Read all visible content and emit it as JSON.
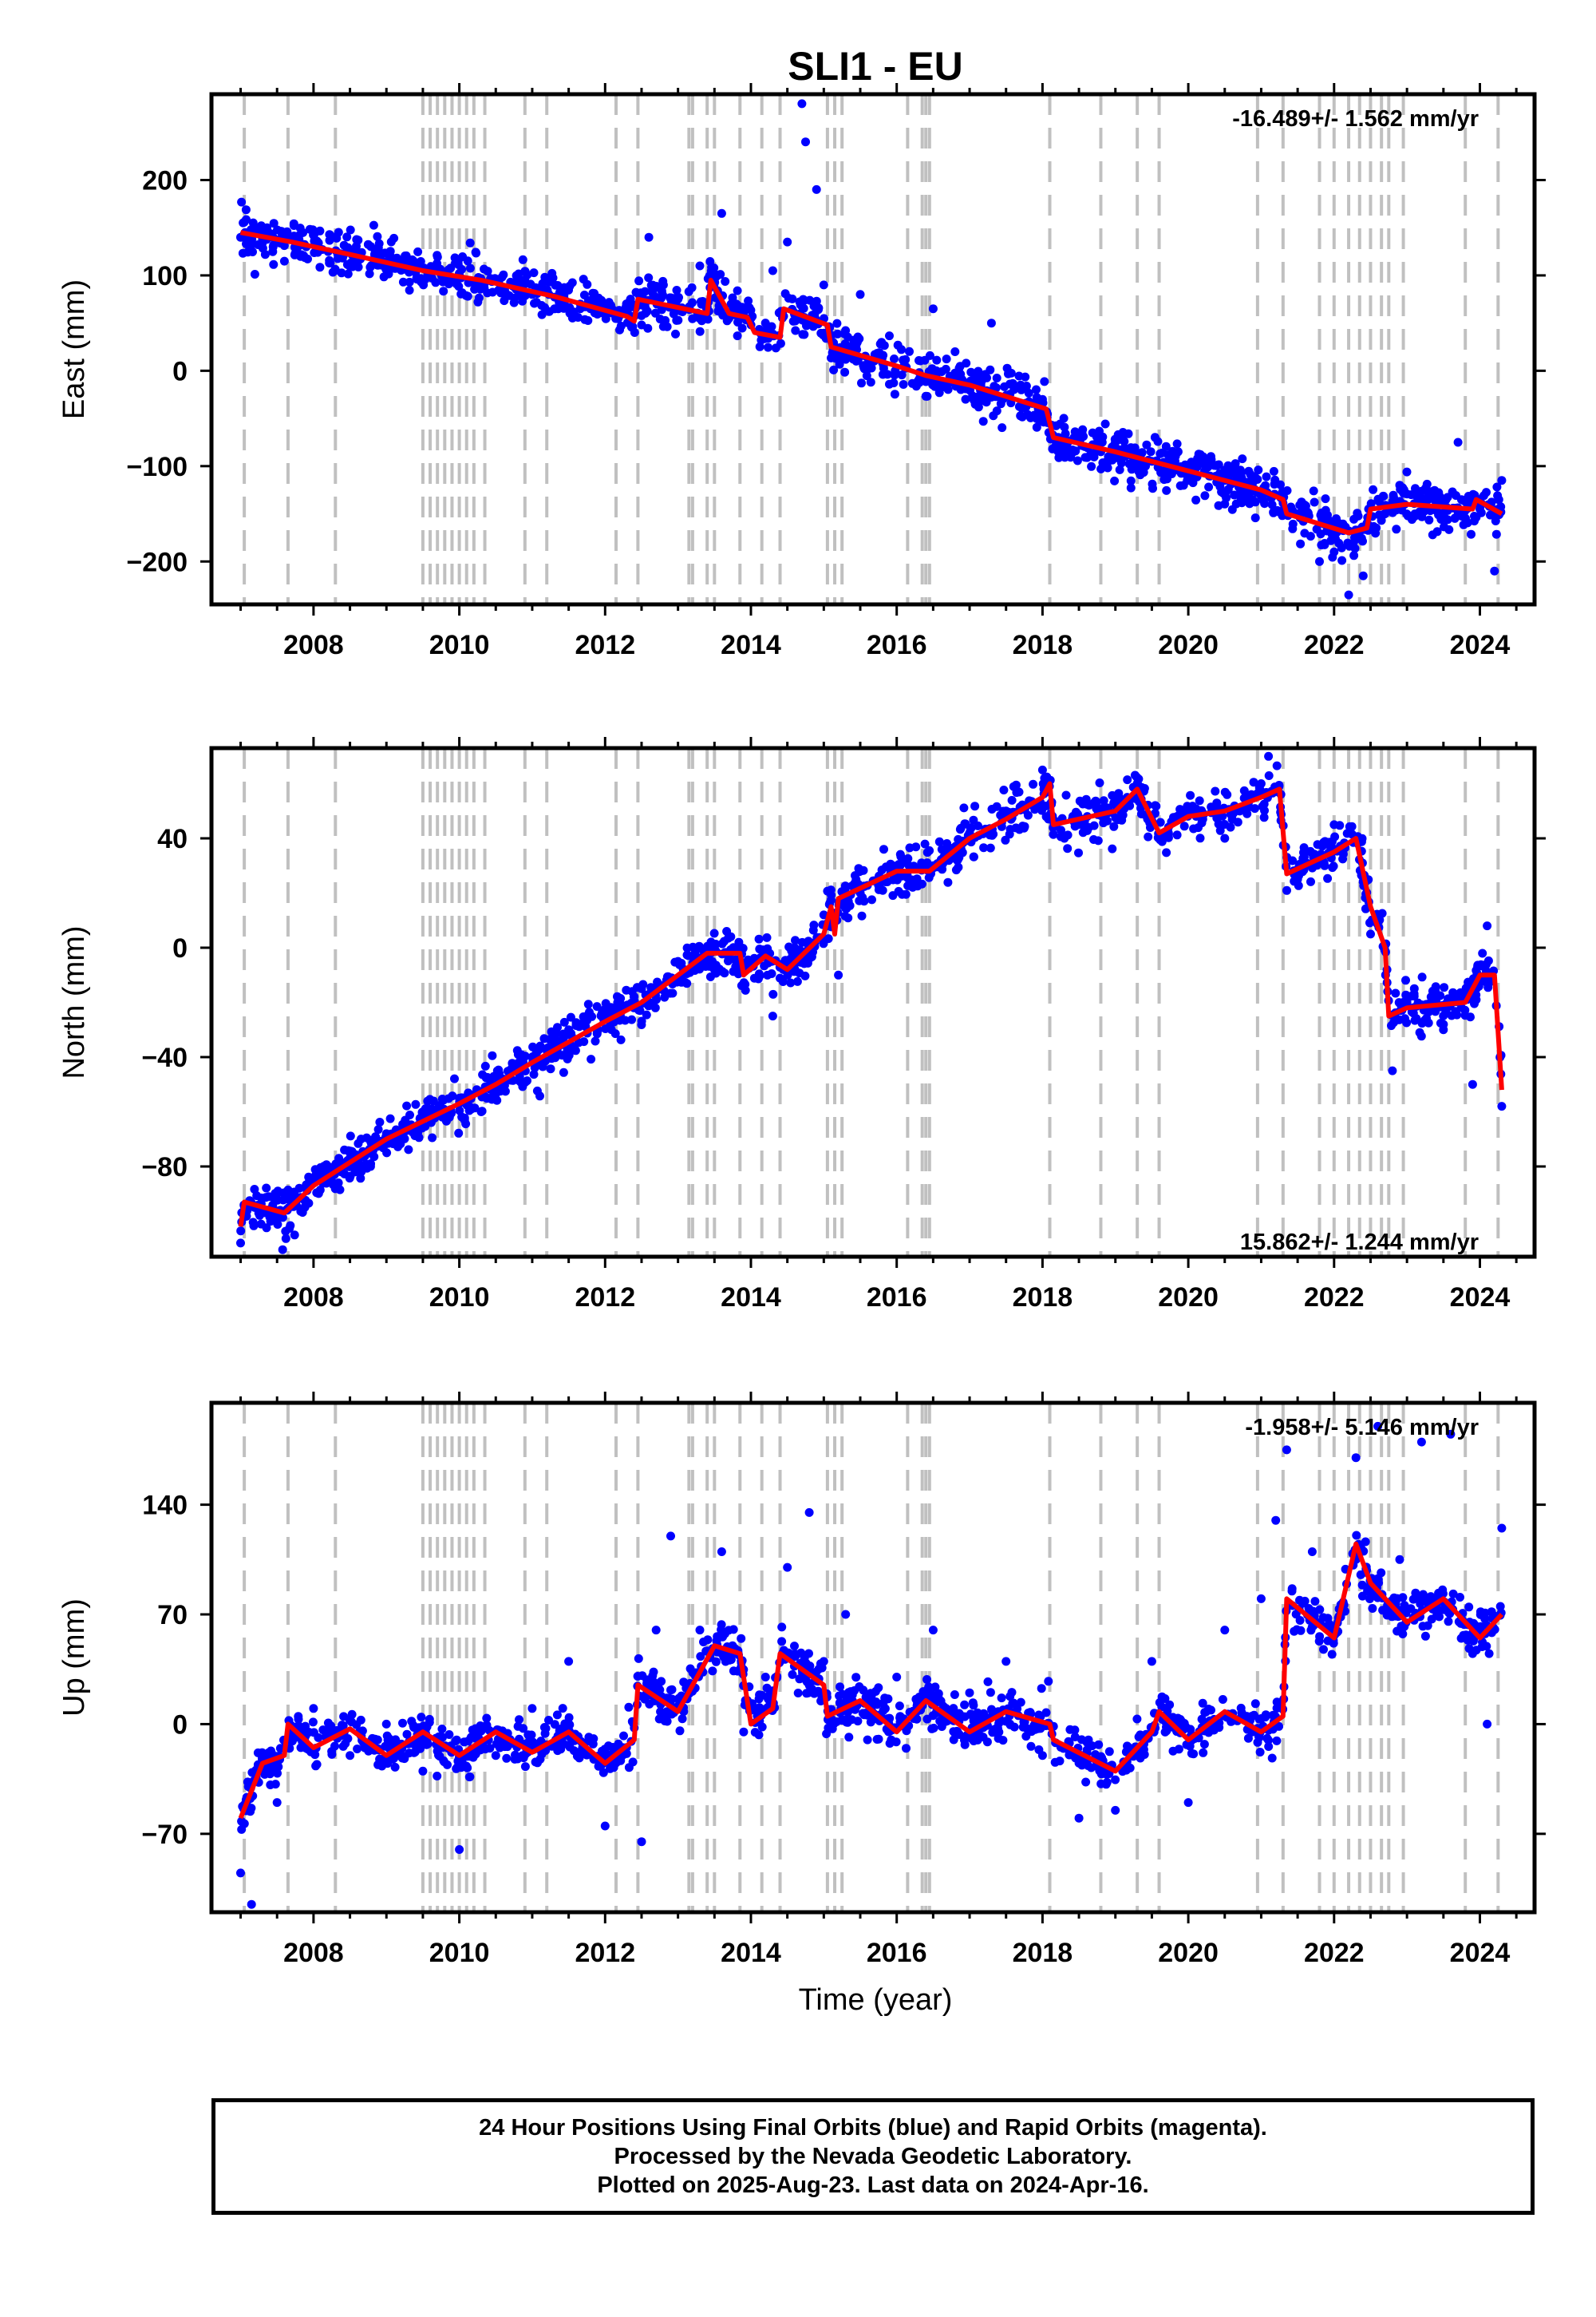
{
  "title": "SLI1 - EU",
  "x_axis_label": "Time (year)",
  "footer": {
    "line1": "24 Hour Positions Using Final Orbits (blue) and Rapid Orbits (magenta).",
    "line2": "Processed by the Nevada Geodetic Laboratory.",
    "line3": "Plotted on 2025-Aug-23. Last data on 2024-Apr-16."
  },
  "colors": {
    "data": "#0000ff",
    "model": "#ff0000",
    "event_lines": "#c0c0c0",
    "frame": "#000000"
  },
  "chart_data": [
    {
      "type": "scatter",
      "name": "East",
      "ylabel": "East (mm)",
      "rate_text": "-16.489+/- 1.562 mm/yr",
      "xlim": [
        2006.6,
        2024.75
      ],
      "ylim": [
        -245,
        290
      ],
      "xticks": [
        2008,
        2010,
        2012,
        2014,
        2016,
        2018,
        2020,
        2022,
        2024
      ],
      "yticks": [
        -200,
        -100,
        0,
        100,
        200
      ],
      "event_lines": [
        2007.05,
        2007.65,
        2008.3,
        2009.5,
        2009.6,
        2009.7,
        2009.8,
        2009.9,
        2010.0,
        2010.1,
        2010.2,
        2010.35,
        2010.9,
        2011.2,
        2012.15,
        2012.45,
        2013.15,
        2013.2,
        2013.4,
        2013.5,
        2013.85,
        2014.15,
        2014.4,
        2015.05,
        2015.15,
        2015.25,
        2016.15,
        2016.35,
        2016.4,
        2016.45,
        2018.1,
        2018.8,
        2019.3,
        2019.6,
        2020.95,
        2021.3,
        2021.8,
        2022.0,
        2022.2,
        2022.35,
        2022.5,
        2022.65,
        2022.75,
        2022.95,
        2023.8,
        2024.25
      ],
      "model_line": [
        [
          2007.0,
          145
        ],
        [
          2007.7,
          135
        ],
        [
          2008.5,
          122
        ],
        [
          2009.5,
          105
        ],
        [
          2010.3,
          95
        ],
        [
          2011.3,
          78
        ],
        [
          2012.3,
          57
        ],
        [
          2012.4,
          52
        ],
        [
          2012.45,
          75
        ],
        [
          2013.4,
          60
        ],
        [
          2013.45,
          95
        ],
        [
          2013.7,
          60
        ],
        [
          2013.95,
          56
        ],
        [
          2014.05,
          40
        ],
        [
          2014.4,
          35
        ],
        [
          2014.45,
          65
        ],
        [
          2015.05,
          48
        ],
        [
          2015.1,
          25
        ],
        [
          2016.0,
          5
        ],
        [
          2016.4,
          -5
        ],
        [
          2017.0,
          -15
        ],
        [
          2018.05,
          -40
        ],
        [
          2018.15,
          -70
        ],
        [
          2019.0,
          -85
        ],
        [
          2020.0,
          -105
        ],
        [
          2021.0,
          -125
        ],
        [
          2021.3,
          -135
        ],
        [
          2021.35,
          -150
        ],
        [
          2022.2,
          -170
        ],
        [
          2022.45,
          -165
        ],
        [
          2022.5,
          -145
        ],
        [
          2023.0,
          -140
        ],
        [
          2023.9,
          -145
        ],
        [
          2023.95,
          -135
        ],
        [
          2024.3,
          -150
        ]
      ],
      "points": [
        [
          2007.0,
          140
        ],
        [
          2007.3,
          138
        ],
        [
          2007.6,
          135
        ],
        [
          2007.9,
          130
        ],
        [
          2008.2,
          125
        ],
        [
          2008.6,
          118
        ],
        [
          2009.0,
          110
        ],
        [
          2009.4,
          103
        ],
        [
          2009.8,
          98
        ],
        [
          2010.2,
          92
        ],
        [
          2010.6,
          85
        ],
        [
          2011.0,
          80
        ],
        [
          2011.4,
          75
        ],
        [
          2011.8,
          65
        ],
        [
          2012.2,
          58
        ],
        [
          2012.5,
          48
        ],
        [
          2012.6,
          140
        ],
        [
          2012.8,
          90
        ],
        [
          2013.0,
          75
        ],
        [
          2013.3,
          110
        ],
        [
          2013.6,
          165
        ],
        [
          2013.8,
          70
        ],
        [
          2014.0,
          55
        ],
        [
          2014.3,
          105
        ],
        [
          2014.5,
          135
        ],
        [
          2014.7,
          280
        ],
        [
          2014.75,
          240
        ],
        [
          2014.9,
          190
        ],
        [
          2015.0,
          90
        ],
        [
          2015.3,
          25
        ],
        [
          2015.5,
          80
        ],
        [
          2015.7,
          15
        ],
        [
          2016.1,
          5
        ],
        [
          2016.5,
          65
        ],
        [
          2016.8,
          20
        ],
        [
          2017.3,
          50
        ],
        [
          2017.7,
          -15
        ],
        [
          2018.0,
          -30
        ],
        [
          2018.3,
          -75
        ],
        [
          2018.8,
          -85
        ],
        [
          2019.5,
          -95
        ],
        [
          2020.0,
          -100
        ],
        [
          2020.5,
          -115
        ],
        [
          2021.0,
          -130
        ],
        [
          2021.5,
          -150
        ],
        [
          2021.8,
          -200
        ],
        [
          2022.0,
          -190
        ],
        [
          2022.2,
          -235
        ],
        [
          2022.4,
          -215
        ],
        [
          2022.7,
          -150
        ],
        [
          2022.9,
          -120
        ],
        [
          2023.3,
          -130
        ],
        [
          2023.7,
          -75
        ],
        [
          2024.0,
          -145
        ],
        [
          2024.2,
          -210
        ],
        [
          2024.3,
          -115
        ]
      ]
    },
    {
      "type": "scatter",
      "name": "North",
      "ylabel": "North (mm)",
      "rate_text": "15.862+/- 1.244 mm/yr",
      "xlim": [
        2006.6,
        2024.75
      ],
      "ylim": [
        -113,
        73
      ],
      "xticks": [
        2008,
        2010,
        2012,
        2014,
        2016,
        2018,
        2020,
        2022,
        2024
      ],
      "yticks": [
        -80,
        -40,
        0,
        40
      ],
      "event_lines": [
        2007.05,
        2007.65,
        2008.3,
        2009.5,
        2009.6,
        2009.7,
        2009.8,
        2009.9,
        2010.0,
        2010.1,
        2010.2,
        2010.35,
        2010.9,
        2011.2,
        2012.15,
        2012.45,
        2013.15,
        2013.2,
        2013.4,
        2013.5,
        2013.85,
        2014.15,
        2014.4,
        2015.05,
        2015.15,
        2015.25,
        2016.15,
        2016.35,
        2016.4,
        2016.45,
        2018.1,
        2018.8,
        2019.3,
        2019.6,
        2020.95,
        2021.3,
        2021.8,
        2022.0,
        2022.2,
        2022.35,
        2022.5,
        2022.65,
        2022.75,
        2022.95,
        2023.8,
        2024.25
      ],
      "model_line": [
        [
          2007.0,
          -102
        ],
        [
          2007.05,
          -93
        ],
        [
          2007.6,
          -97
        ],
        [
          2008.0,
          -87
        ],
        [
          2009.0,
          -70
        ],
        [
          2010.0,
          -57
        ],
        [
          2010.5,
          -50
        ],
        [
          2011.0,
          -42
        ],
        [
          2012.0,
          -27
        ],
        [
          2012.5,
          -20
        ],
        [
          2013.0,
          -10
        ],
        [
          2013.4,
          -2
        ],
        [
          2013.85,
          -2
        ],
        [
          2013.9,
          -10
        ],
        [
          2014.2,
          -3
        ],
        [
          2014.5,
          -8
        ],
        [
          2015.0,
          5
        ],
        [
          2015.1,
          15
        ],
        [
          2015.15,
          5
        ],
        [
          2015.2,
          18
        ],
        [
          2016.0,
          28
        ],
        [
          2016.45,
          28
        ],
        [
          2017.0,
          40
        ],
        [
          2017.5,
          47
        ],
        [
          2018.0,
          55
        ],
        [
          2018.1,
          60
        ],
        [
          2018.15,
          45
        ],
        [
          2019.0,
          50
        ],
        [
          2019.3,
          58
        ],
        [
          2019.6,
          42
        ],
        [
          2020.0,
          48
        ],
        [
          2020.5,
          50
        ],
        [
          2021.0,
          55
        ],
        [
          2021.25,
          58
        ],
        [
          2021.35,
          27
        ],
        [
          2022.0,
          35
        ],
        [
          2022.3,
          40
        ],
        [
          2022.5,
          15
        ],
        [
          2022.7,
          0
        ],
        [
          2022.75,
          -25
        ],
        [
          2023.0,
          -22
        ],
        [
          2023.8,
          -20
        ],
        [
          2024.0,
          -10
        ],
        [
          2024.2,
          -10
        ],
        [
          2024.3,
          -52
        ]
      ],
      "points": [
        [
          2007.0,
          -108
        ],
        [
          2007.2,
          -95
        ],
        [
          2007.5,
          -90
        ],
        [
          2008.0,
          -85
        ],
        [
          2008.5,
          -75
        ],
        [
          2009.0,
          -68
        ],
        [
          2009.5,
          -60
        ],
        [
          2010.0,
          -55
        ],
        [
          2010.3,
          -60
        ],
        [
          2010.6,
          -48
        ],
        [
          2011.0,
          -40
        ],
        [
          2011.5,
          -30
        ],
        [
          2012.0,
          -25
        ],
        [
          2012.5,
          -15
        ],
        [
          2013.0,
          -5
        ],
        [
          2013.5,
          0
        ],
        [
          2014.0,
          -5
        ],
        [
          2014.3,
          -25
        ],
        [
          2014.6,
          0
        ],
        [
          2015.0,
          12
        ],
        [
          2015.2,
          -10
        ],
        [
          2015.5,
          20
        ],
        [
          2016.0,
          30
        ],
        [
          2016.5,
          30
        ],
        [
          2017.0,
          42
        ],
        [
          2017.5,
          50
        ],
        [
          2018.0,
          65
        ],
        [
          2018.3,
          40
        ],
        [
          2019.0,
          55
        ],
        [
          2019.5,
          45
        ],
        [
          2020.0,
          50
        ],
        [
          2020.5,
          40
        ],
        [
          2021.0,
          60
        ],
        [
          2021.1,
          70
        ],
        [
          2021.5,
          25
        ],
        [
          2022.0,
          45
        ],
        [
          2022.5,
          5
        ],
        [
          2022.8,
          -45
        ],
        [
          2023.0,
          -20
        ],
        [
          2023.5,
          -30
        ],
        [
          2023.9,
          -50
        ],
        [
          2024.1,
          8
        ],
        [
          2024.3,
          -58
        ]
      ]
    },
    {
      "type": "scatter",
      "name": "Up",
      "ylabel": "Up (mm)",
      "rate_text": "-1.958+/- 5.146 mm/yr",
      "xlim": [
        2006.6,
        2024.75
      ],
      "ylim": [
        -120,
        205
      ],
      "xticks": [
        2008,
        2010,
        2012,
        2014,
        2016,
        2018,
        2020,
        2022,
        2024
      ],
      "yticks": [
        -70,
        0,
        70,
        140
      ],
      "event_lines": [
        2007.05,
        2007.65,
        2008.3,
        2009.5,
        2009.6,
        2009.7,
        2009.8,
        2009.9,
        2010.0,
        2010.1,
        2010.2,
        2010.35,
        2010.9,
        2011.2,
        2012.15,
        2012.45,
        2013.15,
        2013.2,
        2013.4,
        2013.5,
        2013.85,
        2014.15,
        2014.4,
        2015.05,
        2015.15,
        2015.25,
        2016.15,
        2016.35,
        2016.4,
        2016.45,
        2018.1,
        2018.8,
        2019.3,
        2019.6,
        2020.95,
        2021.3,
        2021.8,
        2022.0,
        2022.2,
        2022.35,
        2022.5,
        2022.65,
        2022.75,
        2022.95,
        2023.8,
        2024.25
      ],
      "model_line": [
        [
          2007.0,
          -60
        ],
        [
          2007.3,
          -25
        ],
        [
          2007.6,
          -20
        ],
        [
          2007.65,
          0
        ],
        [
          2008.0,
          -15
        ],
        [
          2008.5,
          -3
        ],
        [
          2009.0,
          -20
        ],
        [
          2009.5,
          -5
        ],
        [
          2010.0,
          -20
        ],
        [
          2010.5,
          -5
        ],
        [
          2011.0,
          -18
        ],
        [
          2011.5,
          -5
        ],
        [
          2012.0,
          -25
        ],
        [
          2012.4,
          -10
        ],
        [
          2012.45,
          25
        ],
        [
          2013.0,
          8
        ],
        [
          2013.5,
          50
        ],
        [
          2013.85,
          45
        ],
        [
          2014.0,
          0
        ],
        [
          2014.3,
          10
        ],
        [
          2014.4,
          45
        ],
        [
          2015.0,
          25
        ],
        [
          2015.05,
          5
        ],
        [
          2015.5,
          15
        ],
        [
          2016.0,
          -5
        ],
        [
          2016.4,
          15
        ],
        [
          2017.0,
          -5
        ],
        [
          2017.5,
          8
        ],
        [
          2018.1,
          0
        ],
        [
          2018.15,
          -10
        ],
        [
          2019.0,
          -30
        ],
        [
          2019.5,
          -5
        ],
        [
          2019.6,
          8
        ],
        [
          2020.0,
          -10
        ],
        [
          2020.5,
          8
        ],
        [
          2021.0,
          -5
        ],
        [
          2021.3,
          5
        ],
        [
          2021.35,
          80
        ],
        [
          2022.0,
          55
        ],
        [
          2022.3,
          115
        ],
        [
          2022.5,
          90
        ],
        [
          2023.0,
          65
        ],
        [
          2023.5,
          80
        ],
        [
          2024.0,
          55
        ],
        [
          2024.3,
          70
        ]
      ],
      "points": [
        [
          2007.0,
          -95
        ],
        [
          2007.15,
          -115
        ],
        [
          2007.5,
          -50
        ],
        [
          2008.0,
          10
        ],
        [
          2008.5,
          -20
        ],
        [
          2009.0,
          0
        ],
        [
          2009.5,
          -30
        ],
        [
          2010.0,
          -80
        ],
        [
          2010.5,
          -20
        ],
        [
          2011.0,
          10
        ],
        [
          2011.5,
          40
        ],
        [
          2012.0,
          -65
        ],
        [
          2012.5,
          -75
        ],
        [
          2012.7,
          60
        ],
        [
          2012.9,
          120
        ],
        [
          2013.3,
          60
        ],
        [
          2013.6,
          110
        ],
        [
          2013.9,
          -5
        ],
        [
          2014.2,
          30
        ],
        [
          2014.5,
          100
        ],
        [
          2014.8,
          135
        ],
        [
          2015.0,
          40
        ],
        [
          2015.3,
          70
        ],
        [
          2015.6,
          -10
        ],
        [
          2016.0,
          30
        ],
        [
          2016.5,
          60
        ],
        [
          2017.0,
          20
        ],
        [
          2017.5,
          40
        ],
        [
          2018.0,
          -20
        ],
        [
          2018.5,
          -60
        ],
        [
          2019.0,
          -55
        ],
        [
          2019.5,
          40
        ],
        [
          2020.0,
          -50
        ],
        [
          2020.5,
          60
        ],
        [
          2021.0,
          80
        ],
        [
          2021.2,
          130
        ],
        [
          2021.35,
          175
        ],
        [
          2021.7,
          110
        ],
        [
          2022.0,
          60
        ],
        [
          2022.3,
          170
        ],
        [
          2022.6,
          190
        ],
        [
          2022.9,
          105
        ],
        [
          2023.2,
          180
        ],
        [
          2023.6,
          185
        ],
        [
          2023.9,
          45
        ],
        [
          2024.1,
          0
        ],
        [
          2024.3,
          125
        ]
      ]
    }
  ]
}
